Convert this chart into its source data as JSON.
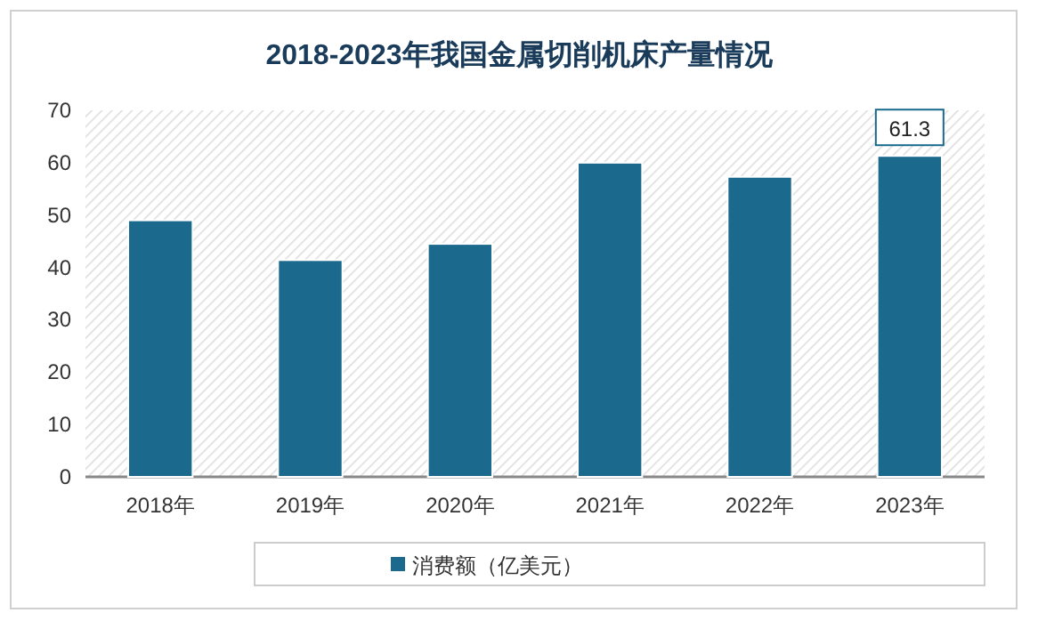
{
  "chart_data": {
    "type": "bar",
    "title": "2018-2023年我国金属切削机床产量情况",
    "categories": [
      "2018年",
      "2019年",
      "2020年",
      "2021年",
      "2022年",
      "2023年"
    ],
    "series": [
      {
        "name": "消费额（亿美元）",
        "color": "#1b6a8e",
        "values": [
          49.0,
          41.4,
          44.5,
          60.0,
          57.3,
          61.3
        ],
        "value_labels": [
          null,
          null,
          null,
          null,
          null,
          "61.3"
        ]
      }
    ],
    "ylim": [
      0,
      70
    ],
    "yticks": [
      0,
      10,
      20,
      30,
      40,
      50,
      60,
      70
    ],
    "grid": false,
    "legend": "bottom"
  }
}
